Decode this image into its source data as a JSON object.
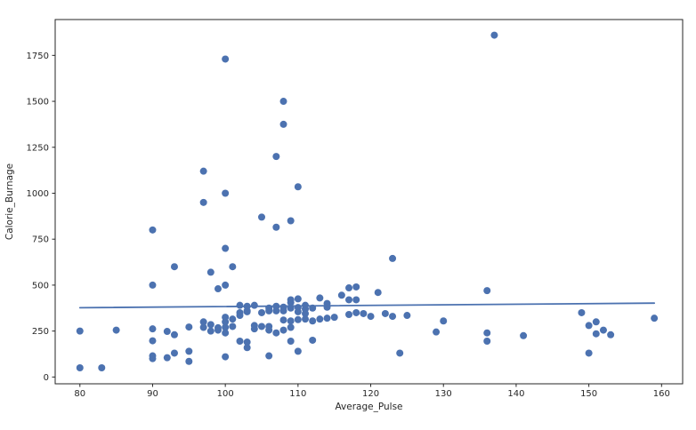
{
  "figure": {
    "background_color": "#ffffff",
    "spine_color": "#262626",
    "text_color": "#262626"
  },
  "chart_data": {
    "type": "scatter",
    "title": "",
    "xlabel": "Average_Pulse",
    "ylabel": "Calorie_Burnage",
    "xlim": [
      76.6,
      162.9
    ],
    "ylim": [
      -37,
      1945
    ],
    "x_ticks": [
      80,
      90,
      100,
      110,
      120,
      130,
      140,
      150,
      160
    ],
    "y_ticks": [
      0,
      250,
      500,
      750,
      1000,
      1250,
      1500,
      1750
    ],
    "grid": false,
    "legend": null,
    "marker_color": "#4c72b0",
    "line_color": "#4c72b0",
    "trend_line": {
      "x1": 80,
      "y1": 377,
      "x2": 159,
      "y2": 402
    },
    "points": [
      [
        80,
        250
      ],
      [
        80,
        50
      ],
      [
        83,
        50
      ],
      [
        85,
        255
      ],
      [
        90,
        800
      ],
      [
        90,
        500
      ],
      [
        90,
        262
      ],
      [
        90,
        197
      ],
      [
        90,
        115
      ],
      [
        90,
        100
      ],
      [
        92,
        248
      ],
      [
        92,
        105
      ],
      [
        93,
        600
      ],
      [
        93,
        230
      ],
      [
        93,
        130
      ],
      [
        95,
        272
      ],
      [
        95,
        140
      ],
      [
        95,
        85
      ],
      [
        97,
        1120
      ],
      [
        97,
        950
      ],
      [
        97,
        300
      ],
      [
        97,
        270
      ],
      [
        98,
        570
      ],
      [
        98,
        285
      ],
      [
        98,
        250
      ],
      [
        99,
        480
      ],
      [
        99,
        268
      ],
      [
        99,
        255
      ],
      [
        100,
        1730
      ],
      [
        100,
        1000
      ],
      [
        100,
        700
      ],
      [
        100,
        500
      ],
      [
        100,
        325
      ],
      [
        100,
        300
      ],
      [
        100,
        270
      ],
      [
        100,
        240
      ],
      [
        100,
        110
      ],
      [
        101,
        600
      ],
      [
        101,
        315
      ],
      [
        101,
        275
      ],
      [
        102,
        390
      ],
      [
        102,
        350
      ],
      [
        102,
        335
      ],
      [
        102,
        195
      ],
      [
        103,
        385
      ],
      [
        103,
        360
      ],
      [
        103,
        355
      ],
      [
        103,
        190
      ],
      [
        103,
        160
      ],
      [
        104,
        390
      ],
      [
        104,
        280
      ],
      [
        104,
        262
      ],
      [
        105,
        870
      ],
      [
        105,
        350
      ],
      [
        105,
        275
      ],
      [
        106,
        375
      ],
      [
        106,
        360
      ],
      [
        106,
        275
      ],
      [
        106,
        255
      ],
      [
        106,
        115
      ],
      [
        107,
        1200
      ],
      [
        107,
        815
      ],
      [
        107,
        385
      ],
      [
        107,
        360
      ],
      [
        107,
        240
      ],
      [
        108,
        1500
      ],
      [
        108,
        1375
      ],
      [
        108,
        380
      ],
      [
        108,
        360
      ],
      [
        108,
        310
      ],
      [
        108,
        255
      ],
      [
        109,
        850
      ],
      [
        109,
        420
      ],
      [
        109,
        405
      ],
      [
        109,
        375
      ],
      [
        109,
        305
      ],
      [
        109,
        270
      ],
      [
        109,
        195
      ],
      [
        110,
        1035
      ],
      [
        110,
        425
      ],
      [
        110,
        378
      ],
      [
        110,
        355
      ],
      [
        110,
        312
      ],
      [
        110,
        140
      ],
      [
        111,
        390
      ],
      [
        111,
        370
      ],
      [
        111,
        345
      ],
      [
        111,
        315
      ],
      [
        112,
        375
      ],
      [
        112,
        305
      ],
      [
        112,
        200
      ],
      [
        113,
        430
      ],
      [
        113,
        315
      ],
      [
        114,
        400
      ],
      [
        114,
        380
      ],
      [
        114,
        320
      ],
      [
        115,
        325
      ],
      [
        116,
        445
      ],
      [
        117,
        485
      ],
      [
        117,
        420
      ],
      [
        117,
        340
      ],
      [
        118,
        490
      ],
      [
        118,
        420
      ],
      [
        118,
        350
      ],
      [
        119,
        345
      ],
      [
        120,
        330
      ],
      [
        121,
        460
      ],
      [
        122,
        345
      ],
      [
        123,
        645
      ],
      [
        123,
        330
      ],
      [
        124,
        130
      ],
      [
        125,
        335
      ],
      [
        129,
        245
      ],
      [
        130,
        305
      ],
      [
        136,
        470
      ],
      [
        136,
        240
      ],
      [
        136,
        195
      ],
      [
        137,
        1860
      ],
      [
        141,
        225
      ],
      [
        149,
        350
      ],
      [
        150,
        280
      ],
      [
        150,
        130
      ],
      [
        151,
        300
      ],
      [
        151,
        235
      ],
      [
        152,
        255
      ],
      [
        153,
        230
      ],
      [
        159,
        320
      ]
    ]
  }
}
